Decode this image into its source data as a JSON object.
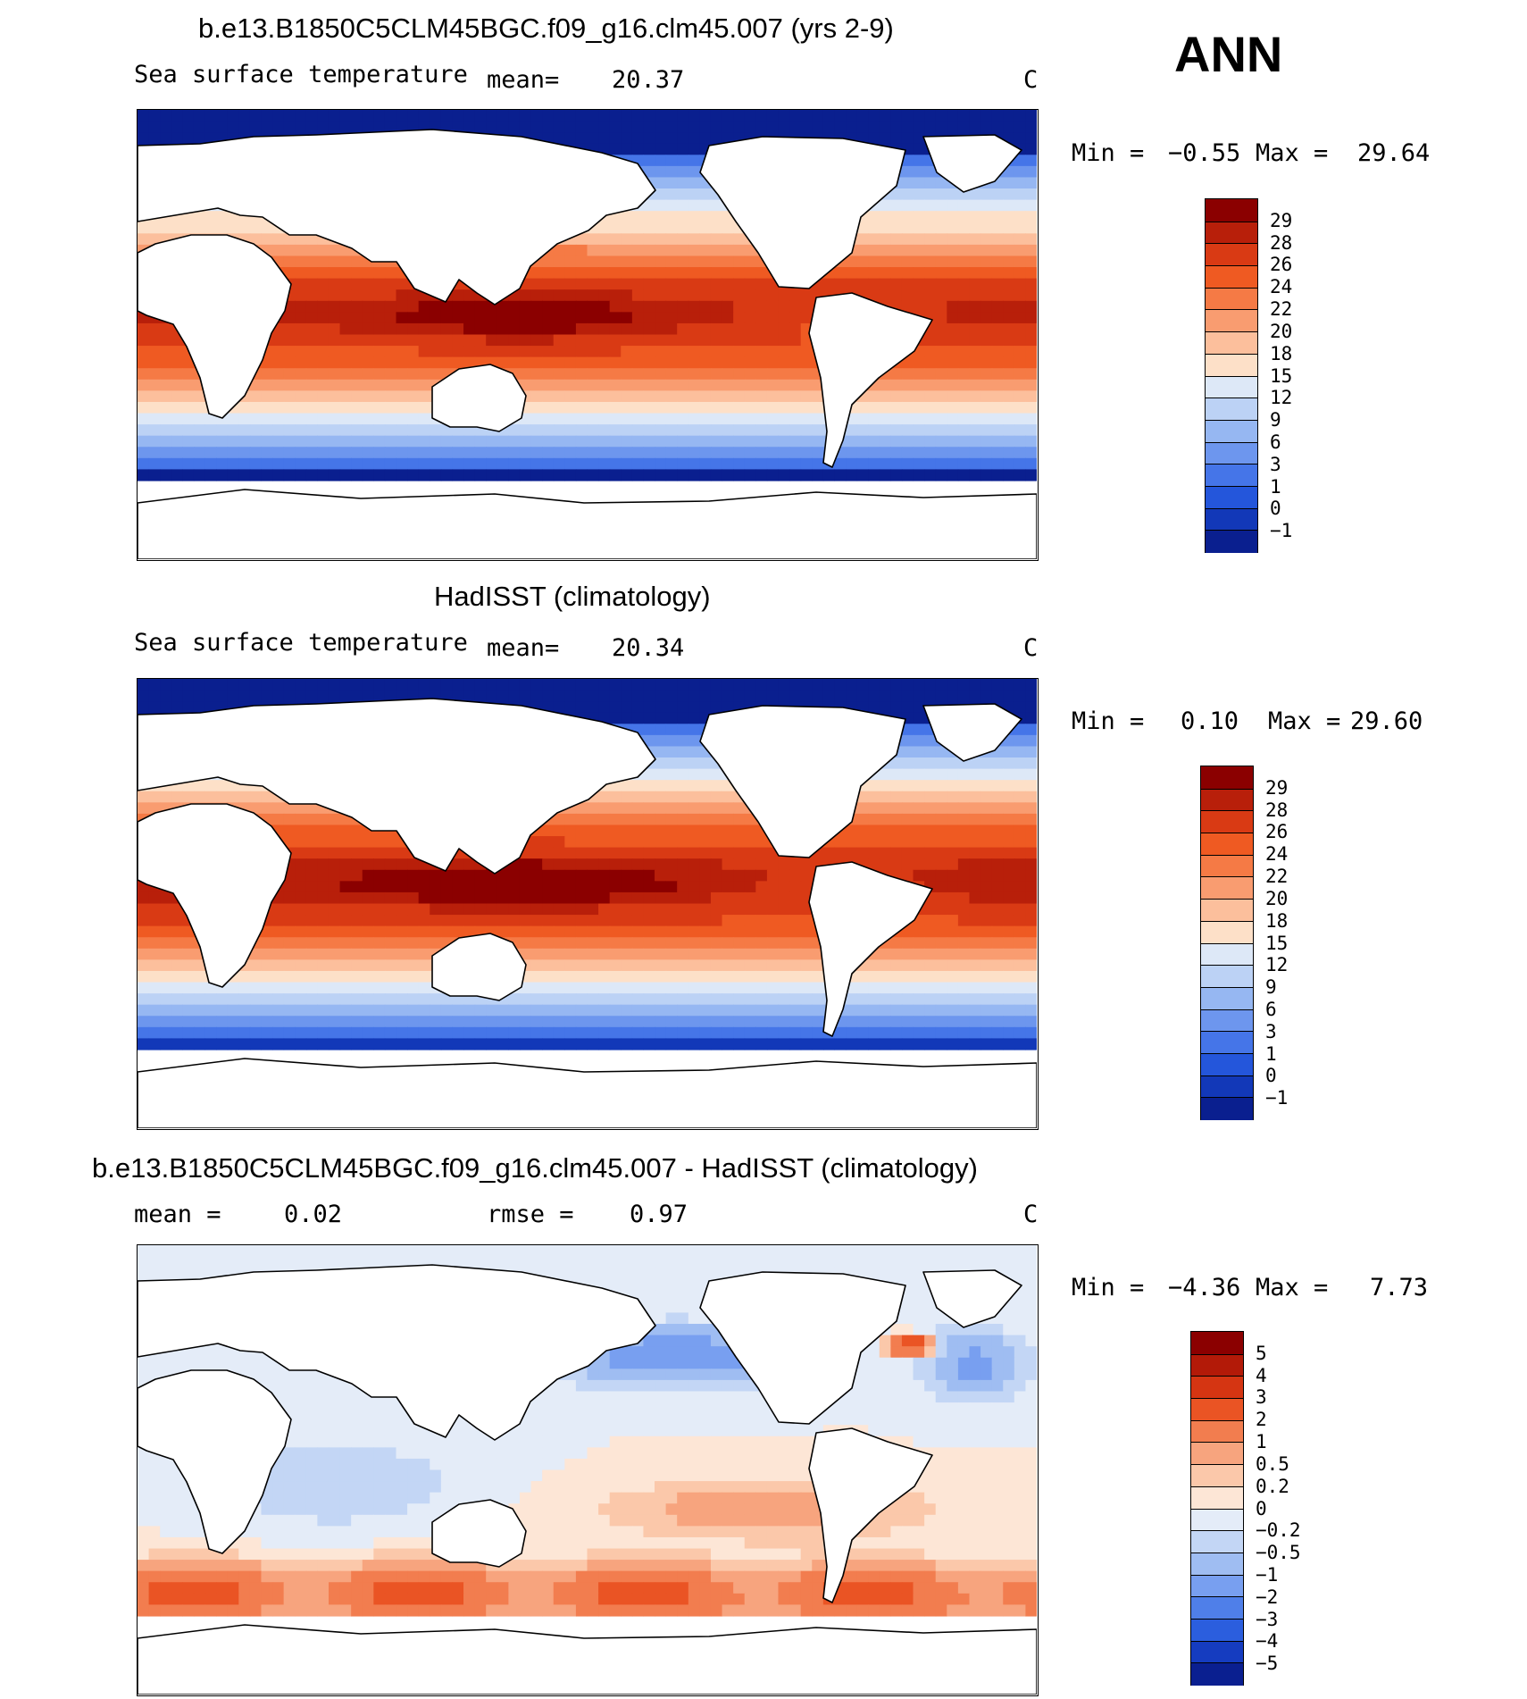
{
  "season": "ANN",
  "units": "C",
  "panels": [
    {
      "id": "model",
      "title": "b.e13.B1850C5CLM45BGC.f09_g16.clm45.007 (yrs 2-9)",
      "left_label": "Sea surface temperature",
      "stat1_label": "mean=",
      "stat1_value": "20.37",
      "stat2_label": "",
      "stat2_value": "",
      "min_label": "Min =",
      "min_value": "−0.55",
      "max_label": "Max =",
      "max_value": "29.64",
      "colorbar_labels": [
        "29",
        "28",
        "26",
        "24",
        "22",
        "20",
        "18",
        "15",
        "12",
        "9",
        "6",
        "3",
        "1",
        "0",
        "−1"
      ]
    },
    {
      "id": "obs",
      "title": "HadISST (climatology)",
      "left_label": "Sea surface temperature",
      "stat1_label": "mean=",
      "stat1_value": "20.34",
      "stat2_label": "",
      "stat2_value": "",
      "min_label": "Min =",
      "min_value": "0.10",
      "max_label": "Max =",
      "max_value": "29.60",
      "colorbar_labels": [
        "29",
        "28",
        "26",
        "24",
        "22",
        "20",
        "18",
        "15",
        "12",
        "9",
        "6",
        "3",
        "1",
        "0",
        "−1"
      ]
    },
    {
      "id": "diff",
      "title": "b.e13.B1850C5CLM45BGC.f09_g16.clm45.007 - HadISST (climatology)",
      "left_label": "",
      "stat1_label": "mean =",
      "stat1_value": "0.02",
      "stat2_label": "rmse =",
      "stat2_value": "0.97",
      "min_label": "Min =",
      "min_value": "−4.36",
      "max_label": "Max =",
      "max_value": "7.73",
      "colorbar_labels": [
        "5",
        "4",
        "3",
        "2",
        "1",
        "0.5",
        "0.2",
        "0",
        "−0.2",
        "−0.5",
        "−1",
        "−2",
        "−3",
        "−4",
        "−5"
      ]
    }
  ],
  "colors": {
    "sst_scale": [
      "#8b0000",
      "#b81f0a",
      "#d93a14",
      "#ef5a22",
      "#f57a45",
      "#f99c70",
      "#fcbf9c",
      "#fde0c8",
      "#dde8f7",
      "#bcd2f5",
      "#96b7f2",
      "#6d96ee",
      "#4575e8",
      "#2456db",
      "#1238b8",
      "#0a1f8f"
    ],
    "diff_scale": [
      "#8b0000",
      "#b31a08",
      "#d53512",
      "#ea5424",
      "#f27d4f",
      "#f7a47e",
      "#fbc8aa",
      "#fde6d6",
      "#e4ecf8",
      "#c3d6f5",
      "#9fbdf2",
      "#789ff0",
      "#4f7fe9",
      "#2b5ede",
      "#153cc0",
      "#0a1f90"
    ],
    "land": "#ffffff",
    "coast": "#000000"
  }
}
